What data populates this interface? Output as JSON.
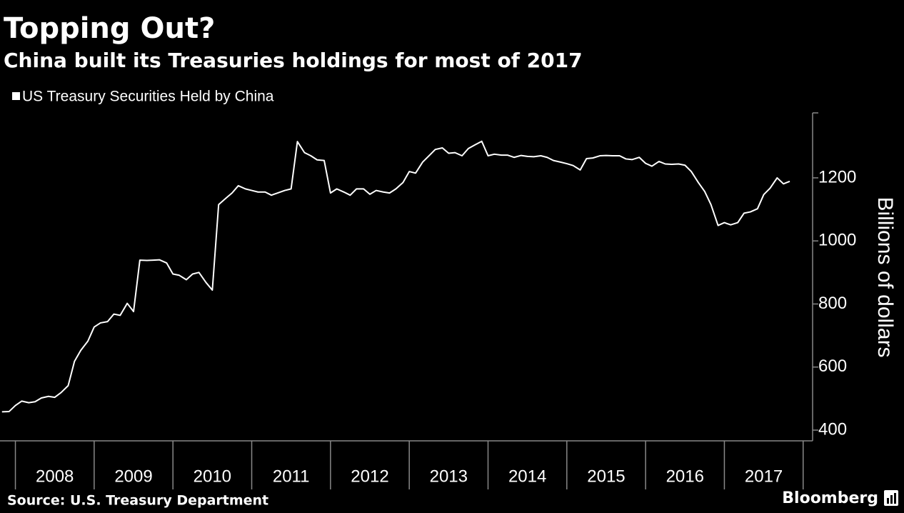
{
  "chart_data": {
    "type": "line",
    "title": "Topping Out?",
    "subtitle": "China built its Treasuries holdings for most of 2017",
    "y_label": "Billions of dollars",
    "source": "Source: U.S. Treasury Department",
    "brand": "Bloomberg",
    "x": [
      2007.83,
      2007.92,
      2008,
      2008.08,
      2008.17,
      2008.25,
      2008.33,
      2008.42,
      2008.5,
      2008.58,
      2008.67,
      2008.75,
      2008.83,
      2008.92,
      2009,
      2009.08,
      2009.17,
      2009.25,
      2009.33,
      2009.42,
      2009.5,
      2009.58,
      2009.67,
      2009.75,
      2009.83,
      2009.92,
      2010,
      2010.08,
      2010.17,
      2010.25,
      2010.33,
      2010.42,
      2010.5,
      2010.58,
      2010.67,
      2010.75,
      2010.83,
      2010.92,
      2011,
      2011.08,
      2011.17,
      2011.25,
      2011.33,
      2011.42,
      2011.5,
      2011.58,
      2011.67,
      2011.75,
      2011.83,
      2011.92,
      2012,
      2012.08,
      2012.17,
      2012.25,
      2012.33,
      2012.42,
      2012.5,
      2012.58,
      2012.67,
      2012.75,
      2012.83,
      2012.92,
      2013,
      2013.08,
      2013.17,
      2013.25,
      2013.33,
      2013.42,
      2013.5,
      2013.58,
      2013.67,
      2013.75,
      2013.83,
      2013.92,
      2014,
      2014.08,
      2014.17,
      2014.25,
      2014.33,
      2014.42,
      2014.5,
      2014.58,
      2014.67,
      2014.75,
      2014.83,
      2014.92,
      2015,
      2015.08,
      2015.17,
      2015.25,
      2015.33,
      2015.42,
      2015.5,
      2015.58,
      2015.67,
      2015.75,
      2015.83,
      2015.92,
      2016,
      2016.08,
      2016.17,
      2016.25,
      2016.33,
      2016.42,
      2016.5,
      2016.58,
      2016.67,
      2016.75,
      2016.83,
      2016.92,
      2017,
      2017.08,
      2017.17,
      2017.25,
      2017.33,
      2017.42,
      2017.5,
      2017.58,
      2017.67,
      2017.75,
      2017.83
    ],
    "series": [
      {
        "name": "US Treasury Securities Held by China",
        "color": "#ffffff",
        "values": [
          458,
          459,
          478,
          492,
          487,
          490,
          502,
          507,
          504,
          519,
          541,
          618,
          653,
          682,
          727,
          740,
          744,
          768,
          764,
          802,
          776,
          939,
          938,
          939,
          940,
          930,
          895,
          891,
          877,
          895,
          900,
          868,
          844,
          1115,
          1135,
          1152,
          1175,
          1165,
          1160,
          1155,
          1155,
          1145,
          1152,
          1160,
          1165,
          1315,
          1280,
          1270,
          1257,
          1255,
          1152,
          1165,
          1155,
          1145,
          1165,
          1165,
          1148,
          1160,
          1155,
          1152,
          1165,
          1185,
          1220,
          1215,
          1250,
          1270,
          1290,
          1295,
          1278,
          1280,
          1270,
          1293,
          1304,
          1316,
          1270,
          1275,
          1272,
          1272,
          1265,
          1271,
          1268,
          1267,
          1270,
          1265,
          1255,
          1250,
          1245,
          1239,
          1225,
          1261,
          1263,
          1270,
          1271,
          1270,
          1270,
          1260,
          1258,
          1265,
          1246,
          1237,
          1252,
          1244,
          1243,
          1244,
          1240,
          1220,
          1185,
          1157,
          1115,
          1049,
          1058,
          1051,
          1058,
          1088,
          1092,
          1102,
          1147,
          1167,
          1200,
          1181,
          1189
        ]
      }
    ],
    "xlim": [
      2007.85,
      2018.12
    ],
    "xticks": [
      2008,
      2009,
      2010,
      2011,
      2012,
      2013,
      2014,
      2015,
      2016,
      2017
    ],
    "ylim": [
      366,
      1406
    ],
    "yticks": [
      400,
      600,
      800,
      1000,
      1200
    ],
    "y_axis_side": "right",
    "grid": false
  }
}
